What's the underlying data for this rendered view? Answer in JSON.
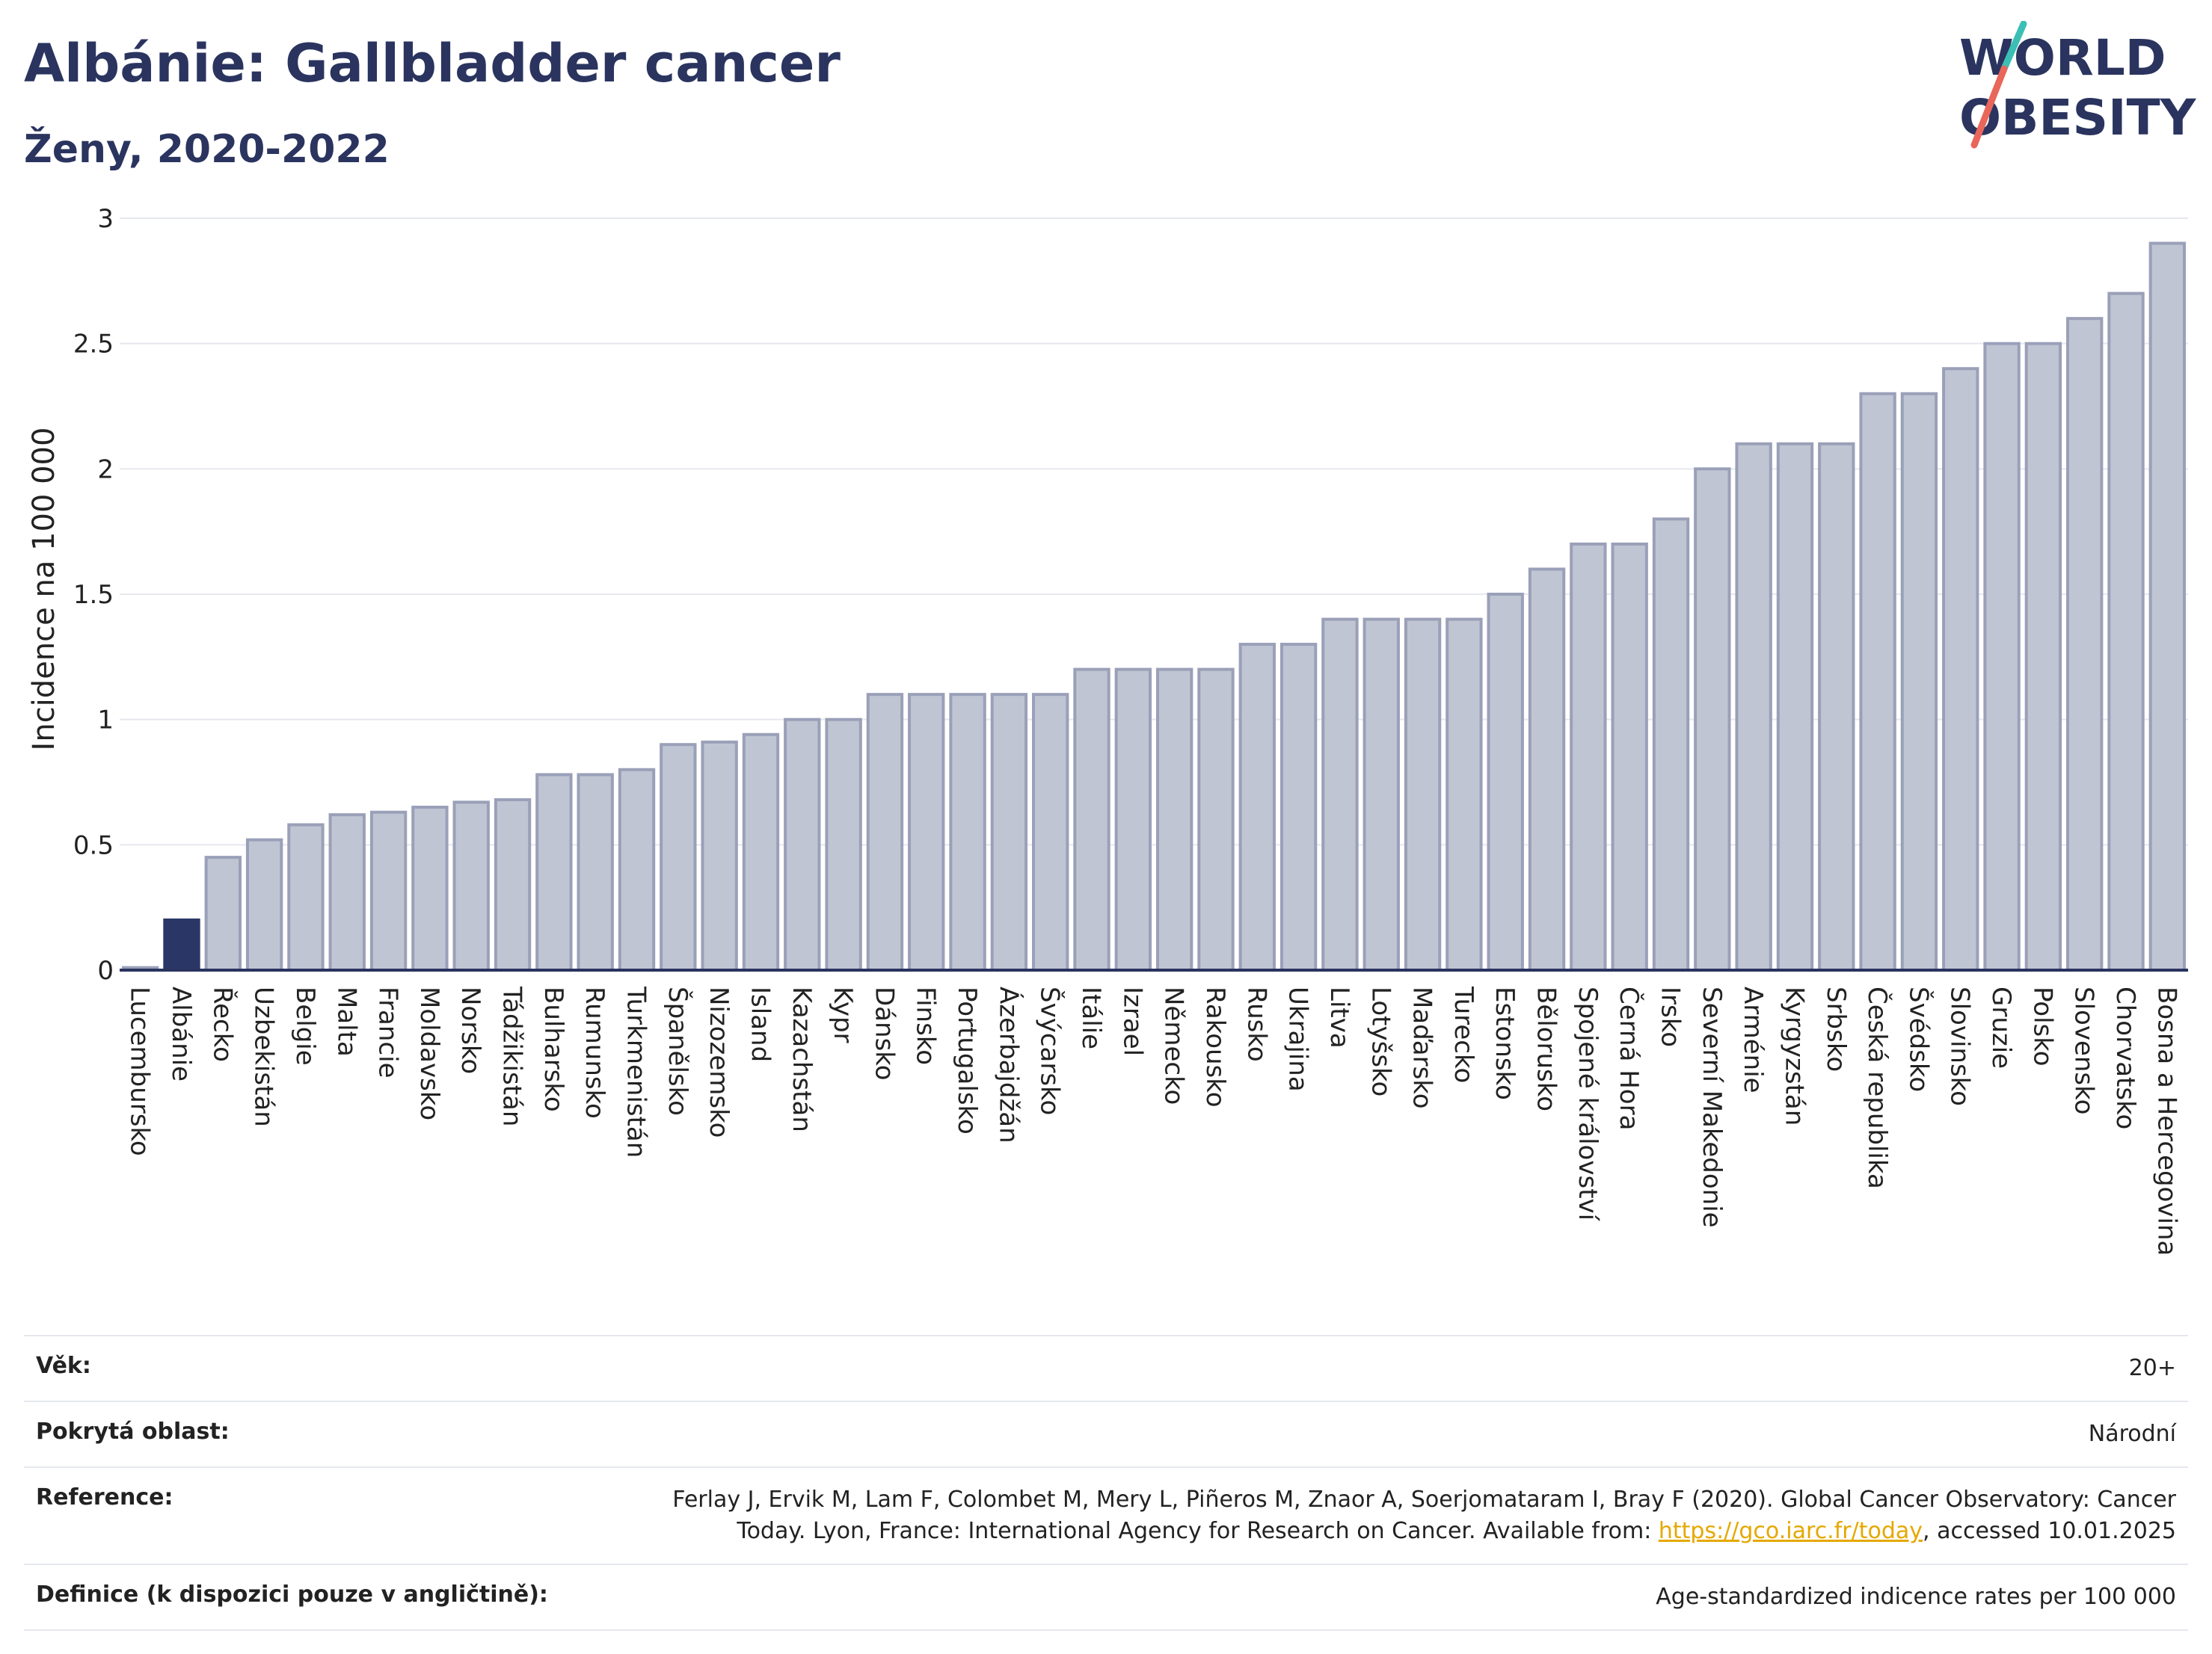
{
  "header": {
    "title": "Albánie: Gallbladder cancer",
    "subtitle": "Ženy, 2020-2022"
  },
  "logo": {
    "line1": "WORLD",
    "line2": "OBESITY",
    "colors": {
      "text": "#2a345f",
      "slash_top": "#3bbfb5",
      "slash_bottom": "#e8675a"
    }
  },
  "chart_data": {
    "type": "bar",
    "title": "",
    "xlabel": "",
    "ylabel": "Incidence na 100 000",
    "ylim": [
      0,
      3
    ],
    "yticks": [
      "0",
      "0.5",
      "1",
      "1.5",
      "2",
      "2.5",
      "3"
    ],
    "grid": true,
    "highlight_category": "Albánie",
    "colors": {
      "bar": "#c0c5d3",
      "bar_edge": "#9aa0b8",
      "highlight": "#2a3766"
    },
    "categories": [
      "Lucembursko",
      "Albánie",
      "Řecko",
      "Uzbekistán",
      "Belgie",
      "Malta",
      "Francie",
      "Moldavsko",
      "Norsko",
      "Tádžikistán",
      "Bulharsko",
      "Rumunsko",
      "Turkmenistán",
      "Španělsko",
      "Nizozemsko",
      "Island",
      "Kazachstán",
      "Kypr",
      "Dánsko",
      "Finsko",
      "Portugalsko",
      "Ázerbajdžán",
      "Švýcarsko",
      "Itálie",
      "Izrael",
      "Německo",
      "Rakousko",
      "Rusko",
      "Ukrajina",
      "Litva",
      "Lotyšsko",
      "Maďarsko",
      "Turecko",
      "Estonsko",
      "Bělorusko",
      "Spojené království",
      "Černá Hora",
      "Irsko",
      "Severní Makedonie",
      "Arménie",
      "Kyrgyzstán",
      "Srbsko",
      "Česká republika",
      "Švédsko",
      "Slovinsko",
      "Gruzie",
      "Polsko",
      "Slovensko",
      "Chorvatsko",
      "Bosna a Hercegovina"
    ],
    "values": [
      0.01,
      0.2,
      0.45,
      0.52,
      0.58,
      0.62,
      0.63,
      0.65,
      0.67,
      0.68,
      0.78,
      0.78,
      0.8,
      0.9,
      0.91,
      0.94,
      1.0,
      1.0,
      1.1,
      1.1,
      1.1,
      1.1,
      1.1,
      1.2,
      1.2,
      1.2,
      1.2,
      1.3,
      1.3,
      1.4,
      1.4,
      1.4,
      1.4,
      1.5,
      1.6,
      1.7,
      1.7,
      1.8,
      2.0,
      2.1,
      2.1,
      2.1,
      2.3,
      2.3,
      2.4,
      2.5,
      2.5,
      2.6,
      2.7,
      2.9
    ]
  },
  "info": {
    "age_label": "Věk:",
    "age_value": "20+",
    "coverage_label": "Pokrytá oblast:",
    "coverage_value": "Národní",
    "reference_label": "Reference:",
    "reference_text_1": "Ferlay J, Ervik M, Lam F, Colombet M, Mery L, Piñeros M, Znaor A, Soerjomataram I, Bray F (2020). Global Cancer Observatory: Cancer",
    "reference_text_2": "Today. Lyon, France: International Agency for Research on Cancer. Available from:",
    "reference_link": "https://gco.iarc.fr/today",
    "reference_text_3": ", accessed 10.01.2025",
    "definition_label": "Definice (k dispozici pouze v angličtině):",
    "definition_value": "Age-standardized indicence rates per 100 000"
  }
}
